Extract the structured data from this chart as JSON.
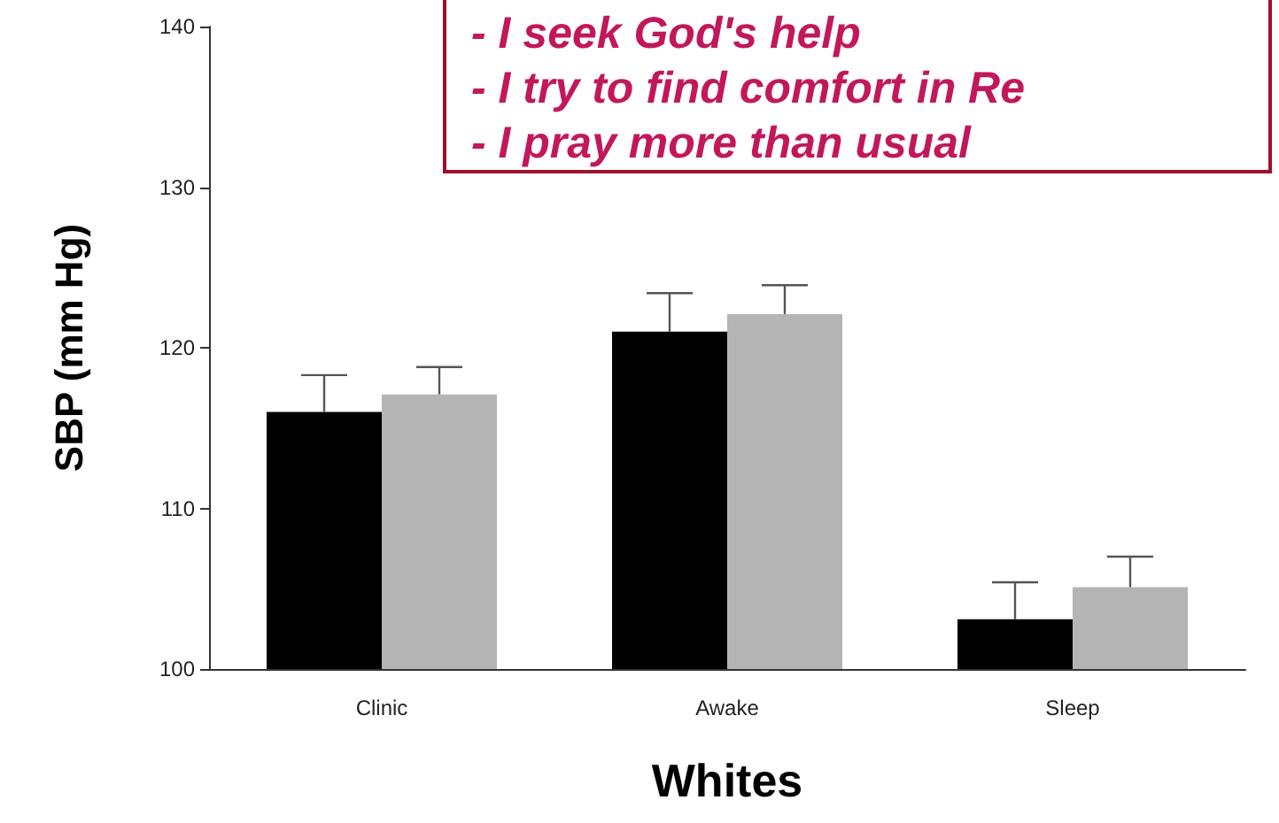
{
  "chart_data": {
    "type": "bar",
    "xlabel": "Whites",
    "ylabel": "SBP (mm Hg)",
    "categories": [
      "Clinic",
      "Awake",
      "Sleep"
    ],
    "series": [
      {
        "color": "#000000",
        "values": [
          116,
          121,
          103.1
        ],
        "errors": [
          [
            116,
            118.3
          ],
          [
            121,
            123.4
          ],
          [
            103.1,
            105.4
          ]
        ]
      },
      {
        "color": "#b4b4b4",
        "values": [
          117.1,
          122.1,
          105.1
        ],
        "errors": [
          [
            117.1,
            118.8
          ],
          [
            122.1,
            123.9
          ],
          [
            105.1,
            107
          ]
        ]
      }
    ],
    "ylim": [
      100,
      140
    ],
    "yticks": [
      100,
      110,
      120,
      130,
      140
    ],
    "grid": false,
    "annotations": [
      "- I seek God's help",
      "- I try to find comfort in Re",
      "- I pray more than usual"
    ]
  }
}
